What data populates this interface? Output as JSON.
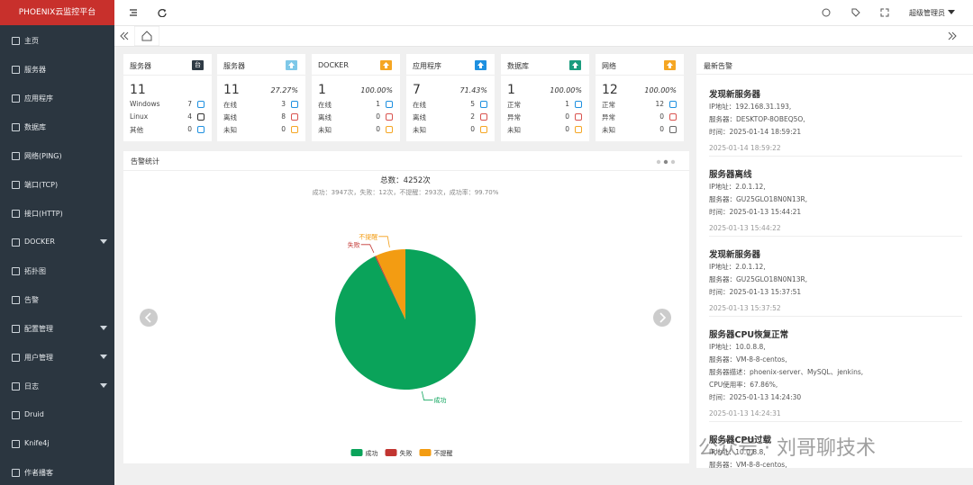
{
  "sidebar": {
    "logo": "PHOENIX云监控平台",
    "items": [
      {
        "label": "主页",
        "arrow": false
      },
      {
        "label": "服务器",
        "arrow": false
      },
      {
        "label": "应用程序",
        "arrow": false
      },
      {
        "label": "数据库",
        "arrow": false
      },
      {
        "label": "网络(PING)",
        "arrow": false
      },
      {
        "label": "端口(TCP)",
        "arrow": false
      },
      {
        "label": "接口(HTTP)",
        "arrow": false
      },
      {
        "label": "DOCKER",
        "arrow": true
      },
      {
        "label": "拓扑图",
        "arrow": false
      },
      {
        "label": "告警",
        "arrow": false
      },
      {
        "label": "配置管理",
        "arrow": true
      },
      {
        "label": "用户管理",
        "arrow": true
      },
      {
        "label": "日志",
        "arrow": true
      },
      {
        "label": "Druid",
        "arrow": false
      },
      {
        "label": "Knife4j",
        "arrow": false
      },
      {
        "label": "作者播客",
        "arrow": false
      }
    ]
  },
  "topbar": {
    "user": "超级管理员"
  },
  "cards": [
    {
      "title": "服务器",
      "badge": "台",
      "badge_color": "#2f3b45",
      "total": "11",
      "rows": [
        {
          "label": "Windows",
          "value": "7"
        },
        {
          "label": "Linux",
          "value": "4"
        },
        {
          "label": "其他",
          "value": "0"
        }
      ]
    },
    {
      "title": "服务器",
      "badge_color": "#7ec8e8",
      "total": "11",
      "percent": "27.27%",
      "rows": [
        {
          "label": "在线",
          "value": "3"
        },
        {
          "label": "离线",
          "value": "8"
        },
        {
          "label": "未知",
          "value": "0"
        }
      ]
    },
    {
      "title": "DOCKER",
      "badge_color": "#f5a623",
      "total": "1",
      "percent": "100.00%",
      "rows": [
        {
          "label": "在线",
          "value": "1"
        },
        {
          "label": "离线",
          "value": "0"
        },
        {
          "label": "未知",
          "value": "0"
        }
      ]
    },
    {
      "title": "应用程序",
      "badge_color": "#1e90e0",
      "total": "7",
      "percent": "71.43%",
      "rows": [
        {
          "label": "在线",
          "value": "5"
        },
        {
          "label": "离线",
          "value": "2"
        },
        {
          "label": "未知",
          "value": "0"
        }
      ]
    },
    {
      "title": "数据库",
      "badge_color": "#1a9c7e",
      "total": "1",
      "percent": "100.00%",
      "rows": [
        {
          "label": "正常",
          "value": "1"
        },
        {
          "label": "异常",
          "value": "0"
        },
        {
          "label": "未知",
          "value": "0"
        }
      ]
    },
    {
      "title": "网络",
      "badge_color": "#f5a623",
      "total": "12",
      "percent": "100.00%",
      "rows": [
        {
          "label": "正常",
          "value": "12"
        },
        {
          "label": "异常",
          "value": "0"
        },
        {
          "label": "未知",
          "value": "0"
        }
      ]
    }
  ],
  "panel_title": "告警统计",
  "chart_data": {
    "type": "pie",
    "title": "总数：4252次",
    "subtitle": "成功：3947次，失败：12次，不提醒：293次，成功率：99.70%",
    "categories": [
      "成功",
      "失败",
      "不提醒"
    ],
    "values": [
      3947,
      12,
      293
    ],
    "colors": [
      "#0aa35a",
      "#c23531",
      "#f39c12"
    ],
    "legend": "bottom"
  },
  "alerts": {
    "title": "最新告警",
    "items": [
      {
        "title": "发现新服务器",
        "lines": [
          "IP地址：192.168.31.193,",
          "服务器：DESKTOP-8OBEQ5O,",
          "时间：2025-01-14 18:59:21"
        ],
        "time": "2025-01-14 18:59:22"
      },
      {
        "title": "服务器离线",
        "lines": [
          "IP地址：2.0.1.12,",
          "服务器：GU25GLO18N0N13R,",
          "时间：2025-01-13 15:44:21"
        ],
        "time": "2025-01-13 15:44:22"
      },
      {
        "title": "发现新服务器",
        "lines": [
          "IP地址：2.0.1.12,",
          "服务器：GU25GLO18N0N13R,",
          "时间：2025-01-13 15:37:51"
        ],
        "time": "2025-01-13 15:37:52"
      },
      {
        "title": "服务器CPU恢复正常",
        "lines": [
          "IP地址：10.0.8.8,",
          "服务器：VM-8-8-centos,",
          "服务器描述：phoenix-server、MySQL、jenkins,",
          "CPU使用率：67.86%,",
          "时间：2025-01-13 14:24:30"
        ],
        "time": "2025-01-13 14:24:31"
      },
      {
        "title": "服务器CPU过载",
        "lines": [
          "IP地址：10.0.8.8,",
          "服务器：VM-8-8-centos,"
        ]
      }
    ]
  },
  "watermark": "公众号 · 刘哥聊技术"
}
